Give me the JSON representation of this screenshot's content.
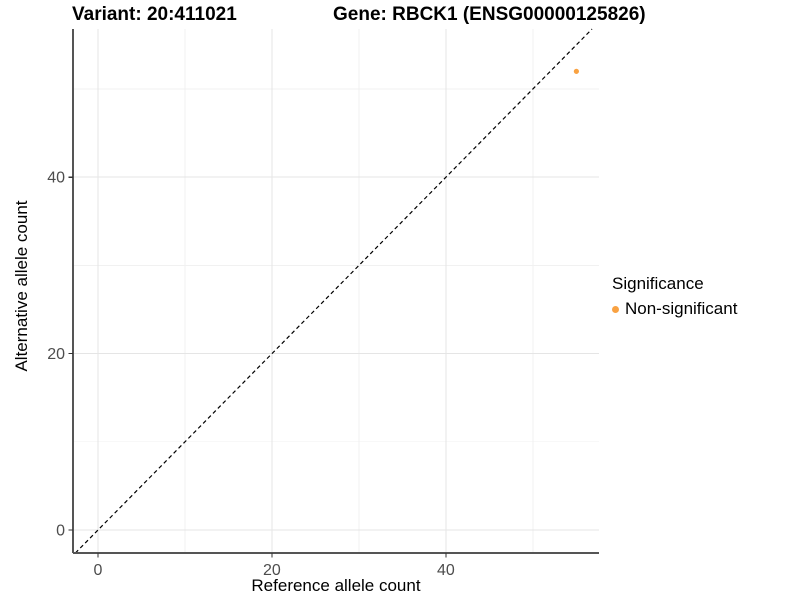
{
  "figure": {
    "titles": {
      "variant": "Variant: 20:411021",
      "gene": "Gene: RBCK1 (ENSG00000125826)"
    }
  },
  "legend": {
    "title": "Significance",
    "items": [
      {
        "label": "Non-significant",
        "color": "#F9A242",
        "marker": "dot"
      }
    ]
  },
  "chart_data": {
    "type": "scatter",
    "title": "",
    "xlabel": "Reference allele count",
    "ylabel": "Alternative allele count",
    "x_ticks": [
      0,
      20,
      40
    ],
    "y_ticks": [
      0,
      20,
      40
    ],
    "x_minor_ticks": [
      10,
      30,
      50
    ],
    "y_minor_ticks": [
      10,
      30,
      50
    ],
    "xlim": [
      -2.87,
      57.6
    ],
    "ylim": [
      -2.6,
      56.8
    ],
    "grid": true,
    "legend_position": "right",
    "series": [
      {
        "name": "Non-significant",
        "color": "#F9A242",
        "points": [
          {
            "x": 55,
            "y": 52
          }
        ]
      }
    ],
    "reference_line": {
      "kind": "identity",
      "equation": "y = x",
      "style": "dashed",
      "color": "#000000"
    }
  },
  "colors": {
    "point": "#F9A242",
    "grid_major": "#e5e5e5",
    "grid_minor": "#f1f1f1",
    "axis_line": "#555555",
    "tick_mark": "#333333",
    "tick_text": "#4d4d4d"
  }
}
